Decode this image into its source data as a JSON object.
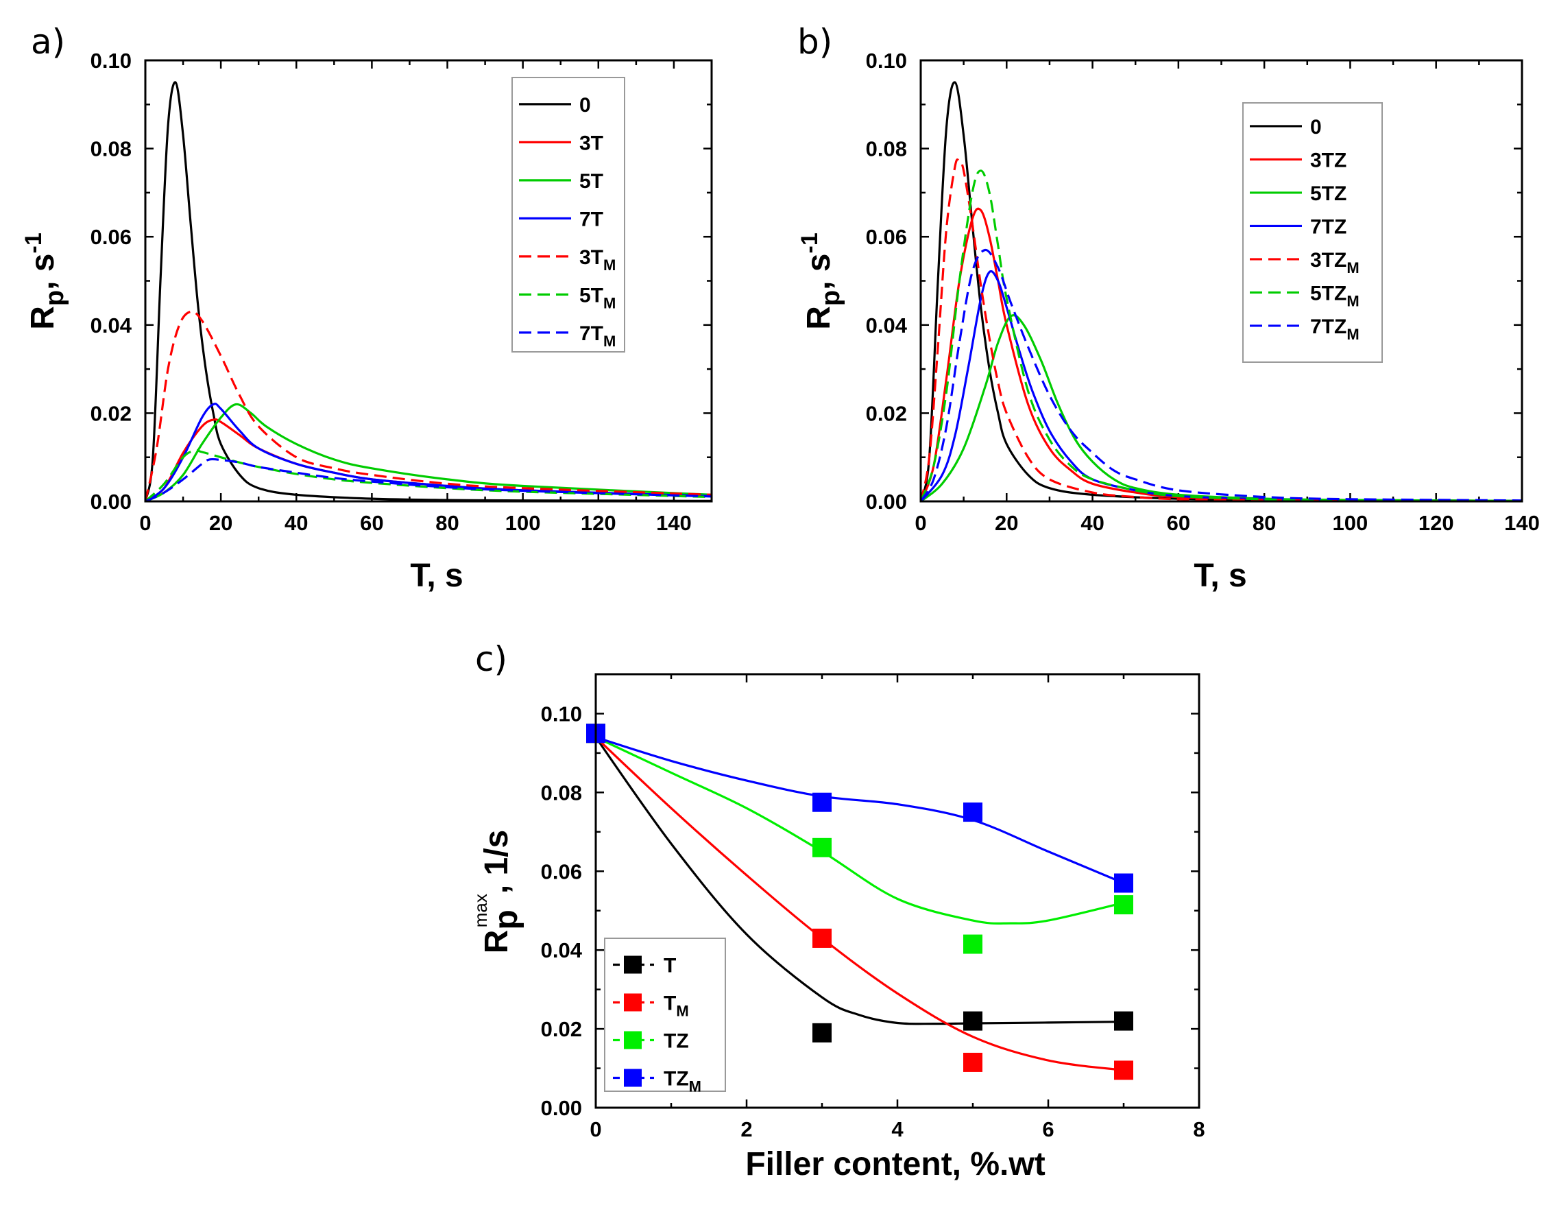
{
  "chart_data": [
    {
      "id": "a",
      "panel_label": "a)",
      "type": "line",
      "xlabel": "T, s",
      "ylabel_main": "R",
      "ylabel_sub": "p",
      "ylabel_rest": ", s",
      "ylabel_sup": "-1",
      "xlim": [
        0,
        150
      ],
      "ylim": [
        0,
        0.1
      ],
      "xticks": [
        0,
        20,
        40,
        60,
        80,
        100,
        120,
        140
      ],
      "xtick_labels": [
        "0",
        "20",
        "40",
        "60",
        "80",
        "100",
        "120",
        "140"
      ],
      "yticks": [
        0,
        0.02,
        0.04,
        0.06,
        0.08,
        0.1
      ],
      "ytick_labels": [
        "0.00",
        "0.02",
        "0.04",
        "0.06",
        "0.08",
        "0.10"
      ],
      "legend_position": "top-right",
      "series": [
        {
          "name": "0",
          "sub": "",
          "color": "#000000",
          "dash": "solid",
          "x": [
            0,
            2,
            4,
            6,
            8,
            10,
            12,
            14,
            16,
            18,
            20,
            25,
            30,
            40,
            60,
            80,
            100,
            150
          ],
          "y": [
            0,
            0.01,
            0.05,
            0.085,
            0.095,
            0.083,
            0.063,
            0.044,
            0.03,
            0.02,
            0.013,
            0.006,
            0.003,
            0.0015,
            0.0006,
            0.0003,
            0.0002,
            0.0001
          ]
        },
        {
          "name": "3T",
          "sub": "",
          "color": "#ff0000",
          "dash": "solid",
          "x": [
            0,
            5,
            10,
            15,
            18,
            20,
            25,
            30,
            40,
            50,
            60,
            80,
            100,
            150
          ],
          "y": [
            0,
            0.003,
            0.011,
            0.017,
            0.0185,
            0.018,
            0.015,
            0.012,
            0.0085,
            0.0065,
            0.005,
            0.0035,
            0.0025,
            0.0012
          ]
        },
        {
          "name": "5T",
          "sub": "",
          "color": "#00cc00",
          "dash": "solid",
          "x": [
            0,
            5,
            10,
            15,
            20,
            24,
            28,
            32,
            40,
            50,
            60,
            80,
            100,
            150
          ],
          "y": [
            0,
            0.002,
            0.006,
            0.013,
            0.019,
            0.022,
            0.02,
            0.017,
            0.013,
            0.0095,
            0.0075,
            0.005,
            0.0035,
            0.0015
          ]
        },
        {
          "name": "7T",
          "sub": "",
          "color": "#0000ff",
          "dash": "solid",
          "x": [
            0,
            5,
            10,
            15,
            18,
            20,
            25,
            30,
            40,
            50,
            60,
            80,
            100,
            150
          ],
          "y": [
            0,
            0.003,
            0.01,
            0.019,
            0.022,
            0.021,
            0.016,
            0.012,
            0.0085,
            0.0065,
            0.005,
            0.0035,
            0.0025,
            0.0012
          ]
        },
        {
          "name": "3T",
          "sub": "M",
          "color": "#ff0000",
          "dash": "dashed",
          "x": [
            0,
            3,
            6,
            9,
            12,
            15,
            20,
            25,
            30,
            40,
            50,
            60,
            80,
            100,
            150
          ],
          "y": [
            0,
            0.012,
            0.03,
            0.04,
            0.043,
            0.041,
            0.033,
            0.024,
            0.017,
            0.01,
            0.0075,
            0.006,
            0.004,
            0.003,
            0.0015
          ]
        },
        {
          "name": "5T",
          "sub": "M",
          "color": "#00cc00",
          "dash": "dashed",
          "x": [
            0,
            5,
            10,
            13,
            15,
            20,
            25,
            30,
            40,
            50,
            60,
            80,
            100,
            150
          ],
          "y": [
            0,
            0.004,
            0.01,
            0.0115,
            0.0112,
            0.01,
            0.0088,
            0.0078,
            0.0062,
            0.005,
            0.0042,
            0.003,
            0.0022,
            0.001
          ]
        },
        {
          "name": "7T",
          "sub": "M",
          "color": "#0000ff",
          "dash": "dashed",
          "x": [
            0,
            5,
            10,
            15,
            17,
            20,
            25,
            30,
            40,
            50,
            60,
            80,
            100,
            150
          ],
          "y": [
            0,
            0.002,
            0.005,
            0.0085,
            0.0095,
            0.0094,
            0.0088,
            0.0078,
            0.0065,
            0.0053,
            0.0045,
            0.0032,
            0.0024,
            0.0011
          ]
        }
      ]
    },
    {
      "id": "b",
      "panel_label": "b)",
      "type": "line",
      "xlabel": "T, s",
      "ylabel_main": "R",
      "ylabel_sub": "p",
      "ylabel_rest": ", s",
      "ylabel_sup": "-1",
      "xlim": [
        0,
        140
      ],
      "ylim": [
        0,
        0.1
      ],
      "xticks": [
        0,
        20,
        40,
        60,
        80,
        100,
        120,
        140
      ],
      "xtick_labels": [
        "0",
        "20",
        "40",
        "60",
        "80",
        "100",
        "120",
        "140"
      ],
      "yticks": [
        0,
        0.02,
        0.04,
        0.06,
        0.08,
        0.1
      ],
      "ytick_labels": [
        "0.00",
        "0.02",
        "0.04",
        "0.06",
        "0.08",
        "0.10"
      ],
      "legend_position": "top-right",
      "series": [
        {
          "name": "0",
          "sub": "",
          "color": "#000000",
          "dash": "solid",
          "x": [
            0,
            2,
            4,
            6,
            8,
            10,
            12,
            14,
            16,
            18,
            20,
            25,
            30,
            40,
            60,
            80,
            100,
            140
          ],
          "y": [
            0,
            0.01,
            0.05,
            0.085,
            0.095,
            0.083,
            0.063,
            0.044,
            0.03,
            0.02,
            0.013,
            0.006,
            0.003,
            0.0015,
            0.0006,
            0.0003,
            0.0002,
            0.0001
          ]
        },
        {
          "name": "3TZ",
          "sub": "",
          "color": "#ff0000",
          "dash": "solid",
          "x": [
            0,
            3,
            6,
            9,
            12,
            14,
            16,
            18,
            20,
            25,
            30,
            35,
            40,
            50,
            60,
            80,
            100,
            140
          ],
          "y": [
            0,
            0.008,
            0.028,
            0.05,
            0.064,
            0.066,
            0.06,
            0.05,
            0.04,
            0.022,
            0.012,
            0.007,
            0.004,
            0.002,
            0.001,
            0.0005,
            0.0003,
            0.0001
          ]
        },
        {
          "name": "5TZ",
          "sub": "",
          "color": "#00cc00",
          "dash": "solid",
          "x": [
            0,
            5,
            10,
            15,
            18,
            21,
            24,
            28,
            32,
            36,
            40,
            45,
            50,
            60,
            80,
            100,
            140
          ],
          "y": [
            0,
            0.004,
            0.012,
            0.026,
            0.036,
            0.042,
            0.04,
            0.032,
            0.022,
            0.014,
            0.009,
            0.005,
            0.003,
            0.0015,
            0.0006,
            0.0003,
            0.0001
          ]
        },
        {
          "name": "7TZ",
          "sub": "",
          "color": "#0000ff",
          "dash": "solid",
          "x": [
            0,
            5,
            8,
            11,
            14,
            16,
            18,
            20,
            23,
            26,
            30,
            35,
            40,
            50,
            60,
            80,
            100,
            140
          ],
          "y": [
            0,
            0.006,
            0.015,
            0.03,
            0.046,
            0.052,
            0.05,
            0.044,
            0.034,
            0.025,
            0.016,
            0.009,
            0.005,
            0.0025,
            0.0012,
            0.0005,
            0.0003,
            0.0001
          ]
        },
        {
          "name": "3TZ",
          "sub": "M",
          "color": "#ff0000",
          "dash": "dashed",
          "x": [
            0,
            2,
            4,
            6,
            8,
            9,
            10,
            12,
            14,
            16,
            18,
            20,
            25,
            30,
            40,
            50,
            60,
            80,
            100,
            140
          ],
          "y": [
            0,
            0.01,
            0.035,
            0.062,
            0.076,
            0.077,
            0.075,
            0.063,
            0.049,
            0.037,
            0.027,
            0.02,
            0.01,
            0.005,
            0.002,
            0.001,
            0.0005,
            0.0003,
            0.0002,
            0.0001
          ]
        },
        {
          "name": "5TZ",
          "sub": "M",
          "color": "#00cc00",
          "dash": "dashed",
          "x": [
            0,
            3,
            6,
            9,
            12,
            14,
            16,
            18,
            20,
            25,
            30,
            35,
            40,
            50,
            60,
            80,
            100,
            140
          ],
          "y": [
            0,
            0.008,
            0.025,
            0.05,
            0.07,
            0.075,
            0.07,
            0.058,
            0.046,
            0.025,
            0.014,
            0.008,
            0.005,
            0.0025,
            0.0012,
            0.0005,
            0.0003,
            0.0001
          ]
        },
        {
          "name": "7TZ",
          "sub": "M",
          "color": "#0000ff",
          "dash": "dashed",
          "x": [
            0,
            3,
            6,
            9,
            12,
            15,
            18,
            21,
            25,
            30,
            35,
            40,
            45,
            50,
            60,
            80,
            100,
            140
          ],
          "y": [
            0,
            0.005,
            0.017,
            0.036,
            0.052,
            0.057,
            0.053,
            0.045,
            0.035,
            0.024,
            0.016,
            0.011,
            0.007,
            0.005,
            0.0025,
            0.001,
            0.0005,
            0.0002
          ]
        }
      ]
    },
    {
      "id": "c",
      "panel_label": "c)",
      "type": "scatter",
      "xlabel": "Filler content, %.wt",
      "ylabel_main": "R",
      "ylabel_sub": "p",
      "ylabel_sup": "max",
      "ylabel_rest": ", 1/s",
      "xlim": [
        0,
        8
      ],
      "ylim": [
        0,
        0.11
      ],
      "xticks": [
        0,
        2,
        4,
        6,
        8
      ],
      "xtick_labels": [
        "0",
        "2",
        "4",
        "6",
        "8"
      ],
      "yticks": [
        0,
        0.02,
        0.04,
        0.06,
        0.08,
        0.1
      ],
      "ytick_labels": [
        "0.00",
        "0.02",
        "0.04",
        "0.06",
        "0.08",
        "0.10"
      ],
      "legend_position": "bottom-left",
      "series": [
        {
          "name": "T",
          "sub": "",
          "color": "#000000",
          "points_x": [
            0,
            3,
            5,
            7
          ],
          "points_y": [
            0.095,
            0.019,
            0.022,
            0.022
          ],
          "fit_x": [
            0,
            1,
            2,
            3,
            3.5,
            4,
            4.5,
            5,
            6,
            7
          ],
          "fit_y": [
            0.094,
            0.067,
            0.044,
            0.028,
            0.0235,
            0.0215,
            0.0213,
            0.0214,
            0.0216,
            0.0218
          ]
        },
        {
          "name": "T",
          "sub": "M",
          "color": "#ff0000",
          "points_x": [
            0,
            3,
            5,
            7
          ],
          "points_y": [
            0.095,
            0.043,
            0.0115,
            0.0095
          ],
          "fit_x": [
            0,
            1,
            2,
            3,
            4,
            5,
            6,
            7
          ],
          "fit_y": [
            0.094,
            0.076,
            0.059,
            0.043,
            0.029,
            0.018,
            0.012,
            0.0095
          ]
        },
        {
          "name": "TZ",
          "sub": "",
          "color": "#00ee00",
          "points_x": [
            0,
            3,
            5,
            7
          ],
          "points_y": [
            0.095,
            0.066,
            0.0415,
            0.0515
          ],
          "fit_x": [
            0,
            1,
            2,
            3,
            4,
            5,
            5.5,
            6,
            7
          ],
          "fit_y": [
            0.094,
            0.085,
            0.076,
            0.065,
            0.053,
            0.0475,
            0.0468,
            0.0475,
            0.052
          ]
        },
        {
          "name": "TZ",
          "sub": "M",
          "color": "#0000ff",
          "points_x": [
            0,
            3,
            5,
            7
          ],
          "points_y": [
            0.095,
            0.0775,
            0.075,
            0.057
          ],
          "fit_x": [
            0,
            1,
            2,
            3,
            4,
            5,
            6,
            7
          ],
          "fit_y": [
            0.094,
            0.088,
            0.083,
            0.079,
            0.077,
            0.073,
            0.065,
            0.057
          ]
        }
      ]
    }
  ]
}
